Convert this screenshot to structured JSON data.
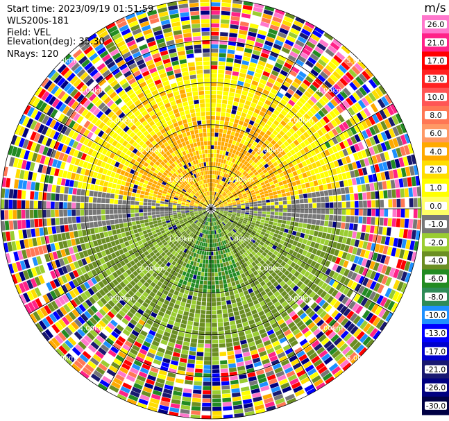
{
  "info": {
    "start_time": "Start time: 2023/09/19 01:51:59",
    "instrument": "WLS200s-181",
    "field": "Field: VEL",
    "elevation": "Elevation(deg): 35.30",
    "nrays": "NRays: 120"
  },
  "chart_data": {
    "type": "ppi",
    "field": "VEL",
    "units": "m/s",
    "n_rays": 120,
    "elevation_deg": 35.3,
    "max_range_km": 5.0,
    "range_rings_km": [
      1,
      2,
      3,
      4,
      5
    ],
    "ring_labels": [
      "1.00km",
      "2.00km",
      "3.00km",
      "4.00km",
      "5.00km"
    ],
    "spoke_angles_deg": [
      0,
      30,
      60,
      90,
      120,
      150,
      180,
      210,
      240,
      270,
      300,
      330
    ],
    "colorbar": {
      "label": "m/s",
      "tick_labels": [
        "26.0",
        "21.0",
        "17.0",
        "13.0",
        "10.0",
        "8.0",
        "6.0",
        "4.0",
        "2.0",
        "1.0",
        "0.0",
        "-1.0",
        "-2.0",
        "-4.0",
        "-6.0",
        "-8.0",
        "-10.0",
        "-13.0",
        "-17.0",
        "-21.0",
        "-26.0",
        "-30.0"
      ],
      "colors": [
        "#ff77cc",
        "#ff2288",
        "#ff0000",
        "#ff2222",
        "#ff5555",
        "#ff7755",
        "#ff9966",
        "#ffaa00",
        "#ffdd00",
        "#ffff00",
        "#ffff66",
        "#777777",
        "#9acd32",
        "#6b8e23",
        "#228b22",
        "#2e8b57",
        "#1e90ff",
        "#0000ff",
        "#0000cd",
        "#191970",
        "#000080",
        "#000044"
      ]
    }
  }
}
